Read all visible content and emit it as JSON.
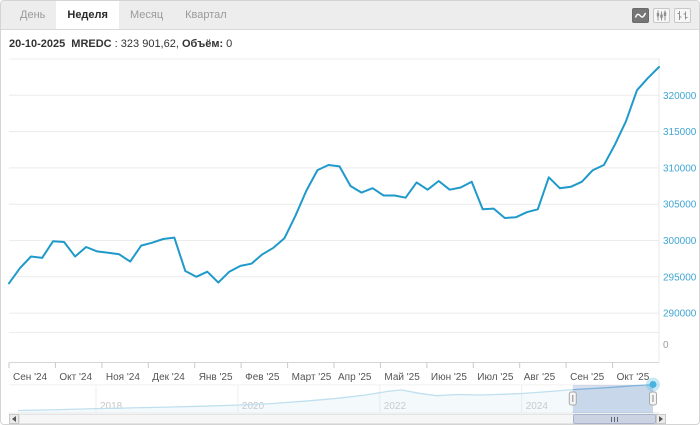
{
  "header": {
    "tabs": [
      {
        "label": "День",
        "active": false
      },
      {
        "label": "Неделя",
        "active": true
      },
      {
        "label": "Месяц",
        "active": false
      },
      {
        "label": "Квартал",
        "active": false
      }
    ],
    "chart_type_buttons": [
      {
        "name": "line-chart-icon",
        "active": true
      },
      {
        "name": "candlestick-icon",
        "active": false
      },
      {
        "name": "ohlc-bars-icon",
        "active": false
      }
    ]
  },
  "info": {
    "date": "20-10-2025",
    "ticker": "MREDC",
    "separator": " : ",
    "value": "323 901,62",
    "delimiter": ", ",
    "volume_label": "Объём:",
    "volume_value": "0"
  },
  "chart_data": {
    "type": "line",
    "title": "MREDC weekly index chart with history navigator",
    "xlabel": "",
    "ylabel": "",
    "grid": "horizontal",
    "legend": "none",
    "ylim": [
      290000,
      325000
    ],
    "x_tick_labels": [
      "Сен '24",
      "Окт '24",
      "Ноя '24",
      "Дек '24",
      "Янв '25",
      "Фев '25",
      "Март '25",
      "Апр '25",
      "Май '25",
      "Июн '25",
      "Июл '25",
      "Авг '25",
      "Сен '25",
      "Окт '25"
    ],
    "y_axis": {
      "levels": [
        325000,
        320000,
        315000,
        310000,
        305000,
        300000,
        295000,
        290000
      ],
      "tick_labels": [
        "320000",
        "315000",
        "310000",
        "305000",
        "300000",
        "295000",
        "290000"
      ],
      "volume_label": "0"
    },
    "series": [
      {
        "name": "MREDC",
        "values": [
          294100,
          296200,
          297800,
          297600,
          299900,
          299800,
          297800,
          299100,
          298500,
          298300,
          298100,
          297100,
          299300,
          299700,
          300200,
          300400,
          295800,
          295000,
          295700,
          294200,
          295700,
          296500,
          296800,
          298100,
          299000,
          300300,
          303400,
          306900,
          309700,
          310400,
          310200,
          307500,
          306600,
          307200,
          306200,
          306200,
          305900,
          308000,
          307000,
          308200,
          307000,
          307300,
          308100,
          304300,
          304400,
          303100,
          303200,
          303900,
          304300,
          308700,
          307200,
          307400,
          308100,
          309700,
          310400,
          313200,
          316400,
          320700,
          322400,
          323902
        ]
      }
    ],
    "navigator": {
      "years": [
        2016.9,
        2017.5,
        2018,
        2018.5,
        2019,
        2019.5,
        2020,
        2020.5,
        2021,
        2021.4,
        2021.8,
        2022.1,
        2022.3,
        2022.55,
        2022.8,
        2023.1,
        2023.4,
        2023.7,
        2024,
        2024.3,
        2024.72,
        2025,
        2025.3,
        2025.55,
        2025.85
      ],
      "values": [
        171000,
        176000,
        182000,
        186000,
        191000,
        196000,
        203000,
        212000,
        228000,
        243000,
        262000,
        283000,
        292000,
        272000,
        258000,
        265000,
        262000,
        266000,
        271000,
        280000,
        294100,
        300500,
        308000,
        315500,
        323902
      ],
      "year_gridlines": [
        2018,
        2020,
        2022,
        2024
      ],
      "year_labels": [
        "2018",
        "2020",
        "2022",
        "2024"
      ],
      "selection": {
        "from_year": 2024.72,
        "to_year": 2025.85,
        "from_label": "Сен '24",
        "to_label": "Окт '25"
      }
    }
  },
  "colors": {
    "series_line": "#1f9aca",
    "y_tick_label": "#41a6d3",
    "x_tick_label": "#555555",
    "volume_zero_label": "#9a9a9a",
    "gridline": "#ececec",
    "axis_line": "#d6d6d6",
    "nav_line": "#8cc6e2",
    "nav_fill": "rgba(145,200,228,0.18)",
    "nav_year_label": "#999999",
    "selection_overlay": "rgba(80,110,180,0.22)",
    "end_dot": "#49b3e0"
  }
}
